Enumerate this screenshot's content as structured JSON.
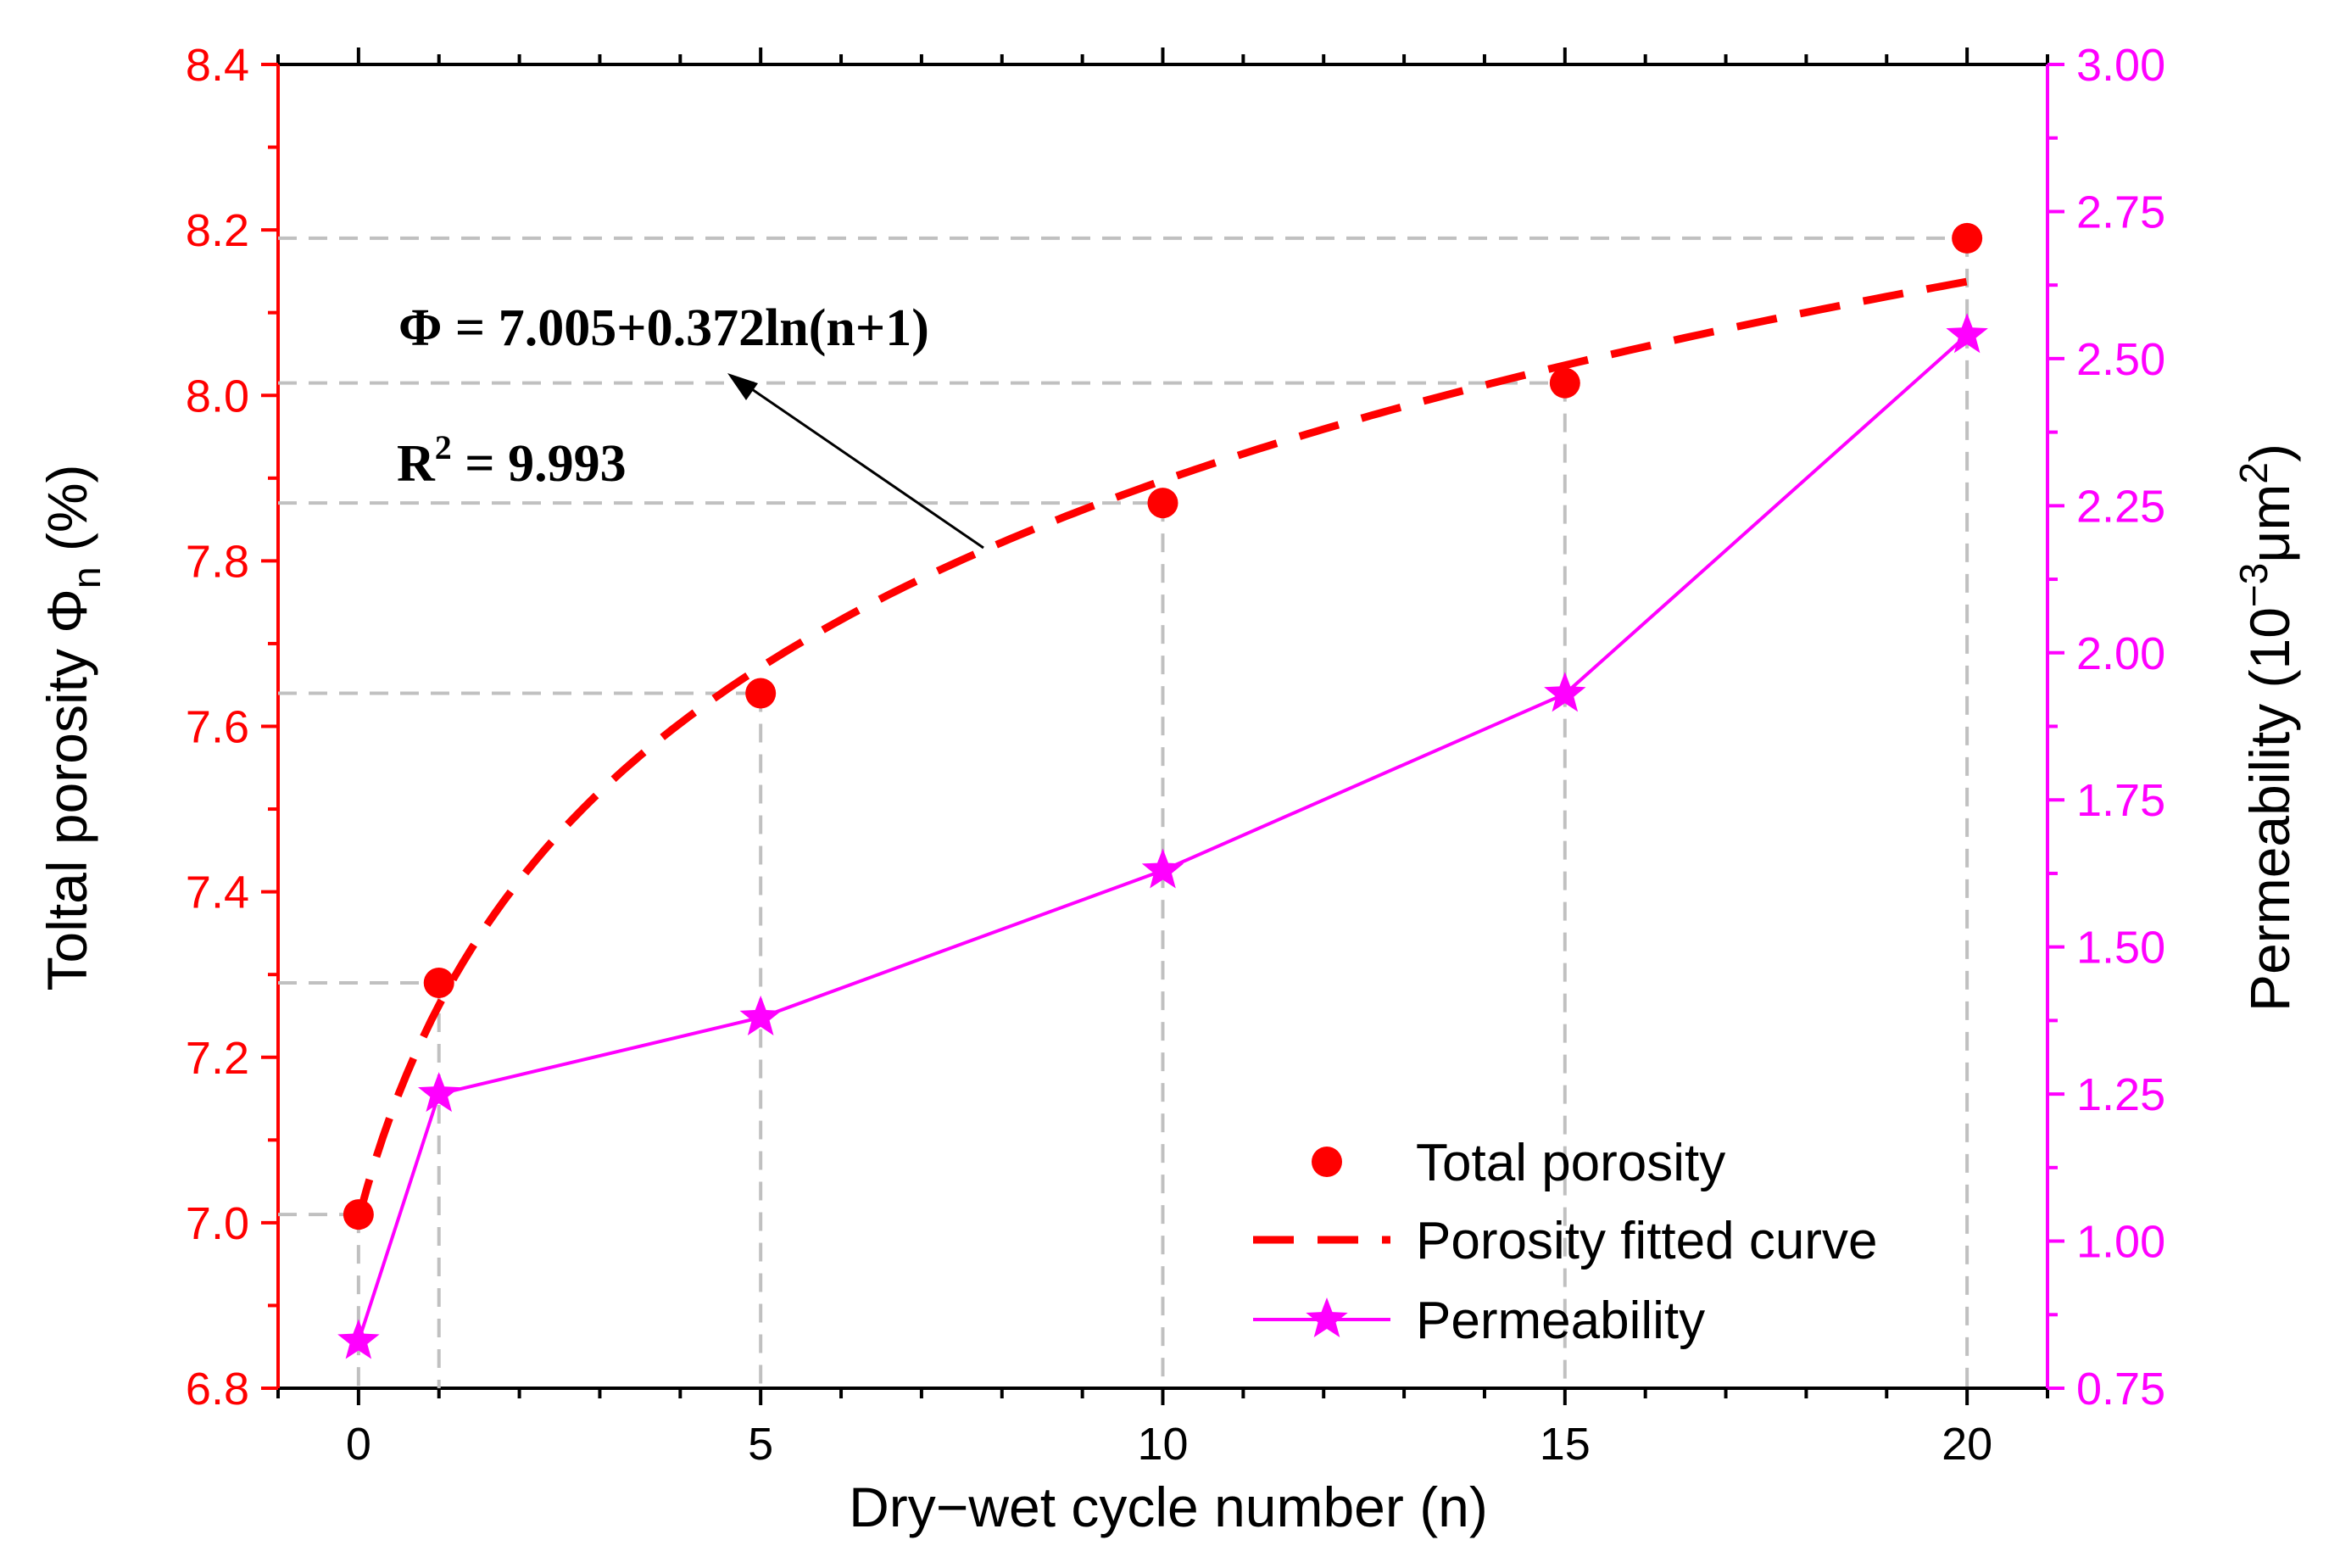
{
  "chart_data": {
    "type": "line",
    "xlabel": "Dry−wet cycle number (n)",
    "ylabel_left": "Toltal porosity Φ",
    "ylabel_left_sub": "n",
    "ylabel_left_unit": "(%)",
    "ylabel_right": "Permeability (10",
    "ylabel_right_sup": "−3",
    "ylabel_right_mid": "μm",
    "ylabel_right_sup2": "2",
    "ylabel_right_end": ")",
    "xlim": [
      -1,
      21
    ],
    "ylim_left": [
      6.8,
      8.4
    ],
    "ylim_right": [
      0.75,
      3.0
    ],
    "xticks": [
      "0",
      "5",
      "10",
      "15",
      "20"
    ],
    "xtick_values": [
      0,
      5,
      10,
      15,
      20
    ],
    "yticks_left": [
      "6.8",
      "7.0",
      "7.2",
      "7.4",
      "7.6",
      "7.8",
      "8.0",
      "8.2",
      "8.4"
    ],
    "yticks_right": [
      "0.75",
      "1.00",
      "1.25",
      "1.50",
      "1.75",
      "2.00",
      "2.25",
      "2.50",
      "2.75",
      "3.00"
    ],
    "series": [
      {
        "name": "Total porosity",
        "axis": "left",
        "x": [
          0,
          1,
          5,
          10,
          15,
          20
        ],
        "y": [
          7.01,
          7.29,
          7.64,
          7.87,
          8.015,
          8.19
        ]
      },
      {
        "name": "Porosity fitted curve",
        "axis": "left",
        "formula": "7.005+0.372ln(n+1)"
      },
      {
        "name": "Permeability",
        "axis": "right",
        "x": [
          0,
          1,
          5,
          10,
          15,
          20
        ],
        "y": [
          0.83,
          1.25,
          1.38,
          1.63,
          1.93,
          2.54
        ]
      }
    ],
    "annotation": {
      "equation": "Φ = 7.005+0.372ln(n+1)",
      "r2_prefix": "R",
      "r2_sup": "2",
      "r2_value": " = 9.993"
    },
    "legend_position": "bottom-right",
    "grid": false,
    "colors": {
      "porosity": "#ff0000",
      "fit": "#ff0000",
      "permeability": "#ff00ff",
      "guides": "#c0c0c0",
      "left_axis": "#ff0000",
      "right_axis": "#ff00ff"
    }
  }
}
